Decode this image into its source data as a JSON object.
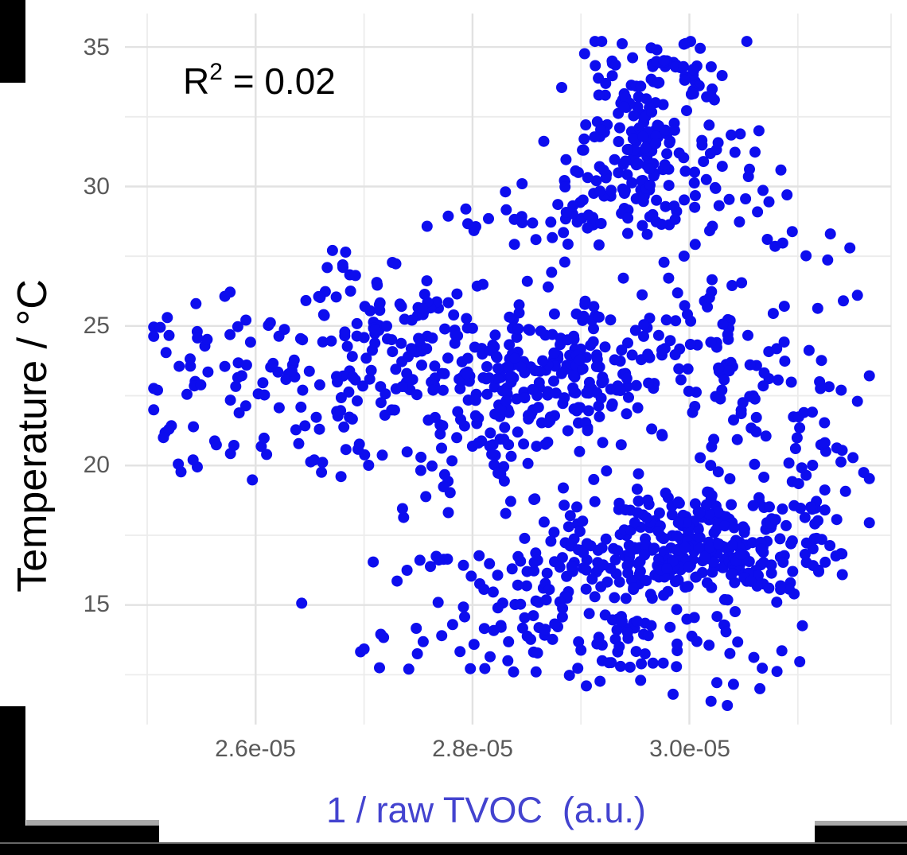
{
  "colors": {
    "point": "#0d0dee",
    "grid_major": "#e2e2e2",
    "grid_minor": "#ececec",
    "tick_label": "#595959",
    "xlabel": "#4343cf",
    "ylabel": "#000000",
    "annotation": "#000000",
    "background": "#ffffff",
    "mask_black": "#000000",
    "mask_gray": "#a9a9a9"
  },
  "chart_data": {
    "type": "scatter",
    "title": "",
    "xlabel": "1 / raw TVOC  (a.u.)",
    "ylabel": "Temperature / °C",
    "annotation": {
      "base": "R",
      "exp": "2",
      "rest": " = 0.02"
    },
    "legend": "none",
    "grid": "on",
    "xlim": [
      2.5e-05,
      3.186e-05
    ],
    "ylim": [
      10.8,
      36.2
    ],
    "x_ticks": [
      {
        "v": 2.6e-05,
        "label": "2.6e-05"
      },
      {
        "v": 2.8e-05,
        "label": "2.8e-05"
      },
      {
        "v": 3e-05,
        "label": "3.0e-05"
      }
    ],
    "y_ticks": [
      {
        "v": 35,
        "label": "35"
      },
      {
        "v": 30,
        "label": "30"
      },
      {
        "v": 25,
        "label": "25"
      },
      {
        "v": 20,
        "label": "20"
      },
      {
        "v": 15,
        "label": "15"
      }
    ],
    "x_minor": [
      2.5e-05,
      2.7e-05,
      2.9e-05,
      3.1e-05
    ],
    "y_minor": [
      32.5,
      27.5,
      22.5,
      17.5,
      12.5
    ],
    "point_radius": 7,
    "seed": 20240217,
    "n_points_estimate": 1350,
    "clamp": {
      "xmin": 2.506e-05,
      "xmax": 3.166e-05,
      "ymin": 11.3,
      "ymax": 35.2
    },
    "clusters": [
      {
        "name": "top-spike-cap",
        "cx": 2.99e-05,
        "cy": 34.3,
        "sx": 3.5e-07,
        "sy": 0.5,
        "n": 40
      },
      {
        "name": "top-column-upper",
        "cx": 2.95e-05,
        "cy": 32.3,
        "sx": 2.5e-07,
        "sy": 0.9,
        "n": 80
      },
      {
        "name": "top-column-lower",
        "cx": 2.94e-05,
        "cy": 30.4,
        "sx": 3.5e-07,
        "sy": 0.8,
        "n": 55
      },
      {
        "name": "top-column-right",
        "cx": 3.01e-05,
        "cy": 31.4,
        "sx": 3e-07,
        "sy": 1.1,
        "n": 35
      },
      {
        "name": "band-29",
        "cx": 2.9e-05,
        "cy": 28.9,
        "sx": 8e-07,
        "sy": 0.65,
        "n": 55
      },
      {
        "name": "upper-right-sparse",
        "cx": 3.07e-05,
        "cy": 28.4,
        "sx": 4e-07,
        "sy": 0.9,
        "n": 10
      },
      {
        "name": "left-sparse",
        "cx": 2.58e-05,
        "cy": 23.1,
        "sx": 5.5e-07,
        "sy": 1.5,
        "n": 70
      },
      {
        "name": "mid-left",
        "cx": 2.7e-05,
        "cy": 24.2,
        "sx": 5.5e-07,
        "sy": 1.3,
        "n": 85
      },
      {
        "name": "mid-left-top",
        "cx": 2.685e-05,
        "cy": 27.0,
        "sx": 2e-07,
        "sy": 0.35,
        "n": 8
      },
      {
        "name": "mid-upper",
        "cx": 2.75e-05,
        "cy": 25.8,
        "sx": 3e-07,
        "sy": 0.7,
        "n": 15
      },
      {
        "name": "central",
        "cx": 2.845e-05,
        "cy": 23.4,
        "sx": 6.5e-07,
        "sy": 1.1,
        "n": 190
      },
      {
        "name": "central-lower",
        "cx": 2.83e-05,
        "cy": 21.2,
        "sx": 9e-07,
        "sy": 0.8,
        "n": 80
      },
      {
        "name": "mid-right",
        "cx": 2.99e-05,
        "cy": 24.3,
        "sx": 6.5e-07,
        "sy": 1.4,
        "n": 90
      },
      {
        "name": "gap-filler",
        "cx": 2.77e-05,
        "cy": 19.5,
        "sx": 7e-07,
        "sy": 1.0,
        "n": 30
      },
      {
        "name": "dense-bottom",
        "cx": 3e-05,
        "cy": 17.1,
        "sx": 6e-07,
        "sy": 0.95,
        "n": 280
      },
      {
        "name": "bottom-band",
        "cx": 2.89e-05,
        "cy": 15.6,
        "sx": 8e-07,
        "sy": 1.1,
        "n": 110
      },
      {
        "name": "bottom-sparse",
        "cx": 2.93e-05,
        "cy": 13.4,
        "sx": 8.5e-07,
        "sy": 0.65,
        "n": 65
      },
      {
        "name": "right-column",
        "cx": 3.095e-05,
        "cy": 18.3,
        "sx": 3.5e-07,
        "sy": 2.0,
        "n": 55
      },
      {
        "name": "right-mid",
        "cx": 3.07e-05,
        "cy": 22.2,
        "sx": 4.5e-07,
        "sy": 1.2,
        "n": 28
      }
    ],
    "extra_points": [
      [
        2.512e-05,
        24.95
      ],
      [
        2.545e-05,
        25.8
      ],
      [
        2.52e-05,
        21.3
      ],
      [
        2.515e-05,
        21.0
      ],
      [
        2.995e-05,
        35.1
      ],
      [
        2.97e-05,
        34.9
      ],
      [
        3.01e-05,
        34.95
      ],
      [
        3.09e-05,
        29.7
      ],
      [
        3.13e-05,
        28.3
      ],
      [
        3.148e-05,
        27.8
      ],
      [
        3.142e-05,
        25.9
      ],
      [
        3.155e-05,
        26.1
      ],
      [
        3.14e-05,
        22.7
      ],
      [
        3.155e-05,
        22.3
      ],
      [
        3.02e-05,
        11.55
      ],
      [
        2.985e-05,
        11.8
      ],
      [
        3.035e-05,
        11.4
      ],
      [
        2.905e-05,
        12.1
      ],
      [
        2.955e-05,
        12.3
      ],
      [
        3.065e-05,
        12.0
      ]
    ]
  }
}
